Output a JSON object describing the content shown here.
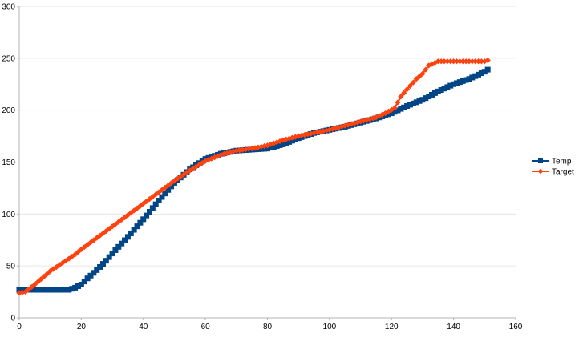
{
  "chart_data": {
    "type": "line",
    "title": "",
    "xlabel": "",
    "ylabel": "",
    "xlim": [
      0,
      160
    ],
    "ylim": [
      0,
      300
    ],
    "x_ticks": [
      0,
      20,
      40,
      60,
      80,
      100,
      120,
      140,
      160
    ],
    "y_ticks": [
      0,
      50,
      100,
      150,
      200,
      250,
      300
    ],
    "grid": "horizontal",
    "legend_position": "right",
    "series": [
      {
        "name": "Temp",
        "color": "#004586",
        "marker": "square",
        "points": [
          [
            0,
            27
          ],
          [
            16,
            27
          ],
          [
            18,
            29
          ],
          [
            20,
            32
          ],
          [
            22,
            38
          ],
          [
            25,
            46
          ],
          [
            28,
            55
          ],
          [
            30,
            62
          ],
          [
            35,
            78
          ],
          [
            40,
            95
          ],
          [
            45,
            113
          ],
          [
            50,
            130
          ],
          [
            55,
            143
          ],
          [
            60,
            153
          ],
          [
            65,
            158
          ],
          [
            70,
            161
          ],
          [
            75,
            162
          ],
          [
            80,
            163
          ],
          [
            85,
            167
          ],
          [
            90,
            173
          ],
          [
            95,
            178
          ],
          [
            100,
            181
          ],
          [
            105,
            184
          ],
          [
            110,
            188
          ],
          [
            115,
            192
          ],
          [
            120,
            197
          ],
          [
            125,
            204
          ],
          [
            130,
            210
          ],
          [
            135,
            218
          ],
          [
            140,
            225
          ],
          [
            145,
            230
          ],
          [
            150,
            237
          ],
          [
            151,
            239
          ]
        ]
      },
      {
        "name": "Target",
        "color": "#ff420e",
        "marker": "diamond",
        "points": [
          [
            0,
            24
          ],
          [
            2,
            25
          ],
          [
            5,
            32
          ],
          [
            10,
            45
          ],
          [
            15,
            55
          ],
          [
            18,
            61
          ],
          [
            20,
            66
          ],
          [
            25,
            77
          ],
          [
            30,
            88
          ],
          [
            35,
            99
          ],
          [
            40,
            110
          ],
          [
            45,
            121
          ],
          [
            50,
            132
          ],
          [
            55,
            142
          ],
          [
            60,
            151
          ],
          [
            65,
            157
          ],
          [
            70,
            161
          ],
          [
            75,
            163
          ],
          [
            80,
            166
          ],
          [
            85,
            171
          ],
          [
            90,
            175
          ],
          [
            95,
            178
          ],
          [
            100,
            181
          ],
          [
            105,
            185
          ],
          [
            110,
            189
          ],
          [
            115,
            193
          ],
          [
            118,
            197
          ],
          [
            121,
            202
          ],
          [
            123,
            213
          ],
          [
            125,
            220
          ],
          [
            128,
            230
          ],
          [
            130,
            235
          ],
          [
            132,
            243
          ],
          [
            135,
            247
          ],
          [
            140,
            247
          ],
          [
            145,
            247
          ],
          [
            150,
            247
          ],
          [
            151,
            248
          ]
        ]
      }
    ]
  }
}
